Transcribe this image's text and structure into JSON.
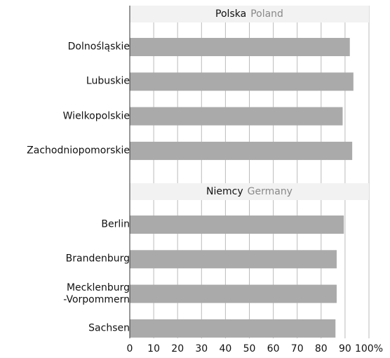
{
  "chart_data": {
    "type": "bar",
    "orientation": "horizontal",
    "color": "#aaaaaa",
    "grid": true,
    "groups": [
      {
        "name": "Polska",
        "name_en": "Poland",
        "categories": [
          "Dolnośląskie",
          "Lubuskie",
          "Wielkopolskie",
          "Zachodniopomorskie"
        ],
        "values": [
          92,
          93.5,
          89,
          93
        ]
      },
      {
        "name": "Niemcy",
        "name_en": "Germany",
        "categories": [
          "Berlin",
          "Brandenburg",
          "Mecklenburg\n-Vorpommern",
          "Sachsen"
        ],
        "values": [
          89.5,
          86.5,
          86.5,
          86
        ]
      }
    ],
    "xlim": [
      0,
      100
    ],
    "xticks": [
      0,
      10,
      20,
      30,
      40,
      50,
      60,
      70,
      80,
      90,
      {
        "value": 100,
        "label": "100%"
      }
    ]
  }
}
